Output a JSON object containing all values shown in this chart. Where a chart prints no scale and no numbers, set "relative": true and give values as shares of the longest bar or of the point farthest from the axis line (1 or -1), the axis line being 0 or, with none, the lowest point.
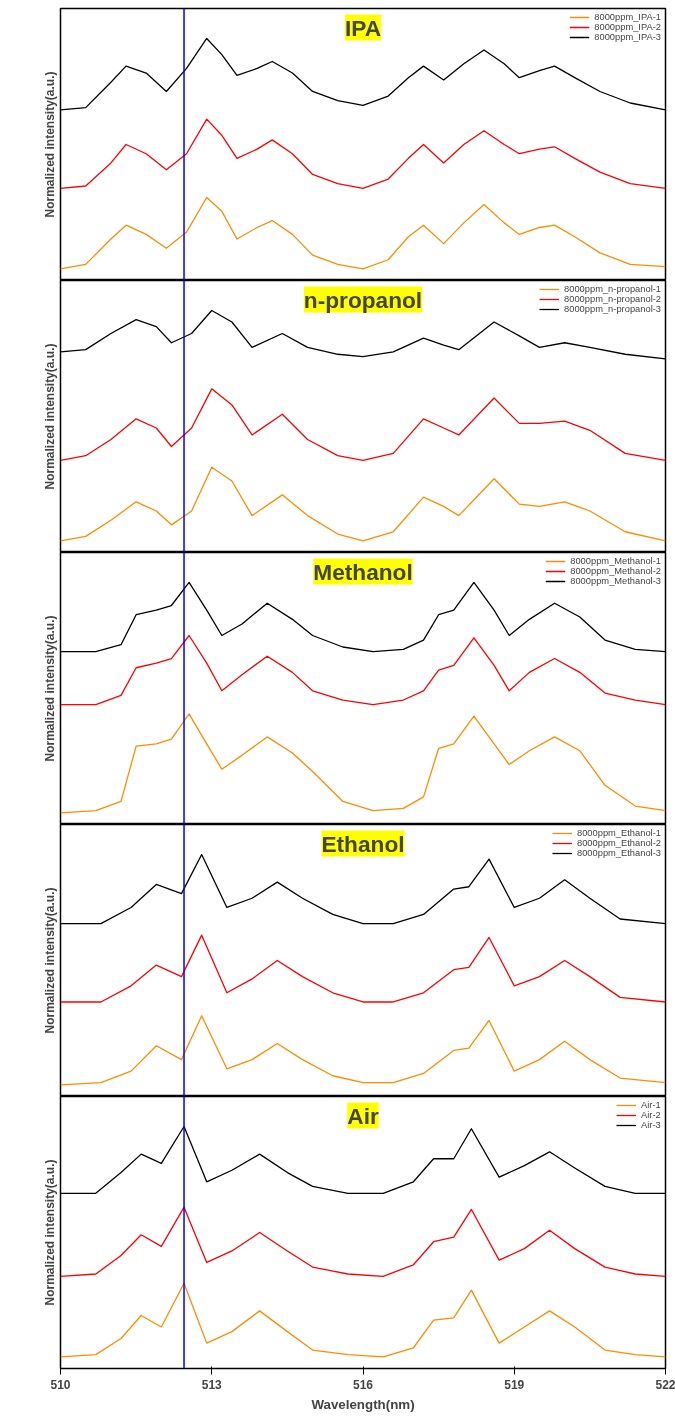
{
  "chart_data": [
    {
      "type": "line",
      "title": "IPA",
      "ylabel": "Normalized intensity(a.u.)",
      "relative": true,
      "xlim": [
        510,
        522
      ],
      "tick_labels": false,
      "legend": "top right",
      "ref_lines": [
        {
          "axis": "x",
          "value": 512.45,
          "color": "#0000ff"
        }
      ],
      "x": [
        510,
        510.5,
        511,
        511.3,
        511.7,
        512.1,
        512.5,
        512.9,
        513.2,
        513.5,
        513.9,
        514.2,
        514.6,
        515,
        515.5,
        516,
        516.5,
        516.9,
        517.2,
        517.6,
        518,
        518.4,
        518.8,
        519.1,
        519.5,
        519.8,
        520.2,
        520.7,
        521.3,
        522
      ],
      "series": [
        {
          "name": "8000ppm_IPA-1",
          "color": "#ff8c00",
          "values": [
            0.0,
            0.02,
            0.13,
            0.19,
            0.15,
            0.09,
            0.16,
            0.31,
            0.25,
            0.13,
            0.18,
            0.21,
            0.15,
            0.06,
            0.02,
            0.0,
            0.04,
            0.14,
            0.19,
            0.11,
            0.2,
            0.28,
            0.2,
            0.15,
            0.18,
            0.19,
            0.14,
            0.07,
            0.02,
            0.01
          ]
        },
        {
          "name": "8000ppm_IPA-2",
          "color": "#ff0000",
          "values": [
            0.35,
            0.36,
            0.46,
            0.54,
            0.5,
            0.43,
            0.5,
            0.65,
            0.58,
            0.48,
            0.52,
            0.56,
            0.5,
            0.41,
            0.37,
            0.35,
            0.39,
            0.48,
            0.54,
            0.46,
            0.54,
            0.6,
            0.54,
            0.5,
            0.52,
            0.53,
            0.48,
            0.42,
            0.37,
            0.35
          ]
        },
        {
          "name": "8000ppm_IPA-3",
          "color": "#000000",
          "values": [
            0.69,
            0.7,
            0.81,
            0.88,
            0.85,
            0.77,
            0.87,
            1.0,
            0.93,
            0.84,
            0.87,
            0.9,
            0.85,
            0.77,
            0.73,
            0.71,
            0.75,
            0.83,
            0.88,
            0.82,
            0.89,
            0.95,
            0.89,
            0.83,
            0.86,
            0.88,
            0.83,
            0.77,
            0.72,
            0.69
          ]
        }
      ]
    },
    {
      "type": "line",
      "title": "n-propanol",
      "ylabel": "Normalized intensity(a.u.)",
      "relative": true,
      "xlim": [
        510,
        522
      ],
      "tick_labels": false,
      "legend": "top right",
      "ref_lines": [
        {
          "axis": "x",
          "value": 512.45,
          "color": "#0000ff"
        }
      ],
      "x": [
        510,
        510.5,
        511,
        511.5,
        511.9,
        512.2,
        512.6,
        513.0,
        513.4,
        513.8,
        514.4,
        514.9,
        515.5,
        516,
        516.6,
        517.2,
        517.6,
        517.9,
        518.6,
        519.1,
        519.5,
        520.0,
        520.5,
        521.2,
        522
      ],
      "series": [
        {
          "name": "8000ppm_n-propanol-1",
          "color": "#ff8c00",
          "values": [
            0.0,
            0.02,
            0.09,
            0.17,
            0.13,
            0.07,
            0.13,
            0.32,
            0.26,
            0.11,
            0.2,
            0.11,
            0.03,
            0.0,
            0.04,
            0.19,
            0.15,
            0.11,
            0.27,
            0.16,
            0.15,
            0.17,
            0.13,
            0.04,
            0.0
          ]
        },
        {
          "name": "8000ppm_n-propanol-2",
          "color": "#ff0000",
          "values": [
            0.35,
            0.37,
            0.44,
            0.53,
            0.49,
            0.41,
            0.49,
            0.66,
            0.59,
            0.46,
            0.55,
            0.44,
            0.37,
            0.35,
            0.38,
            0.53,
            0.49,
            0.46,
            0.62,
            0.51,
            0.51,
            0.52,
            0.48,
            0.38,
            0.35
          ]
        },
        {
          "name": "8000ppm_n-propanol-3",
          "color": "#000000",
          "values": [
            0.82,
            0.83,
            0.9,
            0.96,
            0.93,
            0.86,
            0.9,
            1.0,
            0.95,
            0.84,
            0.9,
            0.84,
            0.81,
            0.8,
            0.82,
            0.88,
            0.85,
            0.83,
            0.95,
            0.89,
            0.84,
            0.86,
            0.84,
            0.81,
            0.79
          ]
        }
      ]
    },
    {
      "type": "line",
      "title": "Methanol",
      "ylabel": "Normalized intensity(a.u.)",
      "relative": true,
      "xlim": [
        510,
        522
      ],
      "tick_labels": false,
      "legend": "top right",
      "ref_lines": [
        {
          "axis": "x",
          "value": 512.45,
          "color": "#0000ff"
        }
      ],
      "x": [
        510,
        510.7,
        511.2,
        511.5,
        511.9,
        512.2,
        512.55,
        512.9,
        513.2,
        513.6,
        514.1,
        514.6,
        515,
        515.6,
        516.2,
        516.8,
        517.2,
        517.5,
        517.8,
        518.2,
        518.6,
        518.9,
        519.3,
        519.8,
        520.3,
        520.8,
        521.4,
        522
      ],
      "series": [
        {
          "name": "8000ppm_Methanol-1",
          "color": "#ff8c00",
          "values": [
            0.0,
            0.01,
            0.05,
            0.29,
            0.3,
            0.32,
            0.43,
            0.3,
            0.19,
            0.25,
            0.33,
            0.26,
            0.18,
            0.05,
            0.01,
            0.02,
            0.07,
            0.28,
            0.3,
            0.42,
            0.3,
            0.21,
            0.27,
            0.33,
            0.27,
            0.12,
            0.03,
            0.01
          ]
        },
        {
          "name": "8000ppm_Methanol-2",
          "color": "#ff0000",
          "values": [
            0.47,
            0.47,
            0.51,
            0.63,
            0.65,
            0.67,
            0.77,
            0.65,
            0.53,
            0.6,
            0.68,
            0.61,
            0.53,
            0.49,
            0.47,
            0.49,
            0.53,
            0.62,
            0.64,
            0.76,
            0.64,
            0.53,
            0.61,
            0.67,
            0.61,
            0.52,
            0.49,
            0.47
          ]
        },
        {
          "name": "8000ppm_Methanol-3",
          "color": "#000000",
          "values": [
            0.7,
            0.7,
            0.73,
            0.86,
            0.88,
            0.9,
            1.0,
            0.88,
            0.77,
            0.82,
            0.91,
            0.84,
            0.77,
            0.72,
            0.7,
            0.71,
            0.75,
            0.86,
            0.88,
            1.0,
            0.88,
            0.77,
            0.84,
            0.91,
            0.85,
            0.75,
            0.71,
            0.7
          ]
        }
      ]
    },
    {
      "type": "line",
      "title": "Ethanol",
      "ylabel": "Normalized intensity(a.u.)",
      "relative": true,
      "xlim": [
        510,
        522
      ],
      "tick_labels": false,
      "legend": "top right",
      "ref_lines": [
        {
          "axis": "x",
          "value": 512.45,
          "color": "#0000ff"
        }
      ],
      "x": [
        510,
        510.8,
        511.4,
        511.9,
        512.4,
        512.8,
        513.3,
        513.8,
        514.3,
        514.8,
        515.4,
        516,
        516.6,
        517.2,
        517.8,
        518.1,
        518.5,
        519.0,
        519.5,
        520.0,
        520.5,
        521.1,
        522
      ],
      "series": [
        {
          "name": "8000ppm_Ethanol-1",
          "color": "#ff8c00",
          "values": [
            0.0,
            0.01,
            0.06,
            0.17,
            0.11,
            0.3,
            0.07,
            0.11,
            0.18,
            0.11,
            0.04,
            0.01,
            0.01,
            0.05,
            0.15,
            0.16,
            0.28,
            0.06,
            0.11,
            0.19,
            0.11,
            0.03,
            0.01
          ]
        },
        {
          "name": "8000ppm_Ethanol-2",
          "color": "#ff0000",
          "values": [
            0.36,
            0.36,
            0.43,
            0.52,
            0.47,
            0.65,
            0.4,
            0.46,
            0.54,
            0.47,
            0.4,
            0.36,
            0.36,
            0.4,
            0.5,
            0.51,
            0.64,
            0.43,
            0.47,
            0.54,
            0.47,
            0.38,
            0.36
          ]
        },
        {
          "name": "8000ppm_Ethanol-3",
          "color": "#000000",
          "values": [
            0.7,
            0.7,
            0.77,
            0.87,
            0.83,
            1.0,
            0.77,
            0.81,
            0.88,
            0.81,
            0.74,
            0.7,
            0.7,
            0.74,
            0.85,
            0.86,
            0.98,
            0.77,
            0.81,
            0.89,
            0.81,
            0.72,
            0.7
          ]
        }
      ]
    },
    {
      "type": "line",
      "title": "Air",
      "ylabel": "Normalized intensity(a.u.)",
      "xlabel": "Wavelength(nm)",
      "relative": true,
      "xlim": [
        510,
        522
      ],
      "xticks": [
        510,
        513,
        516,
        519,
        522
      ],
      "tick_labels": "x",
      "legend": "top right",
      "ref_lines": [
        {
          "axis": "x",
          "value": 512.45,
          "color": "#0000ff"
        }
      ],
      "x": [
        510,
        510.7,
        511.2,
        511.6,
        512.0,
        512.45,
        512.9,
        513.4,
        513.95,
        514.5,
        515,
        515.7,
        516.4,
        517,
        517.4,
        517.8,
        518.15,
        518.7,
        519.2,
        519.7,
        520.2,
        520.8,
        521.4,
        522
      ],
      "series": [
        {
          "name": "Air-1",
          "color": "#ff8c00",
          "values": [
            0.0,
            0.01,
            0.08,
            0.18,
            0.13,
            0.32,
            0.06,
            0.11,
            0.2,
            0.11,
            0.03,
            0.01,
            0.0,
            0.04,
            0.16,
            0.17,
            0.29,
            0.06,
            0.13,
            0.2,
            0.13,
            0.03,
            0.01,
            0.0
          ]
        },
        {
          "name": "Air-2",
          "color": "#ff0000",
          "values": [
            0.35,
            0.36,
            0.44,
            0.53,
            0.48,
            0.65,
            0.41,
            0.46,
            0.54,
            0.46,
            0.39,
            0.36,
            0.35,
            0.4,
            0.5,
            0.52,
            0.64,
            0.42,
            0.47,
            0.55,
            0.47,
            0.39,
            0.36,
            0.35
          ]
        },
        {
          "name": "Air-3",
          "color": "#000000",
          "values": [
            0.71,
            0.71,
            0.8,
            0.88,
            0.84,
            1.0,
            0.76,
            0.81,
            0.88,
            0.8,
            0.74,
            0.71,
            0.71,
            0.76,
            0.86,
            0.86,
            0.99,
            0.78,
            0.83,
            0.89,
            0.82,
            0.74,
            0.71,
            0.71
          ]
        }
      ]
    }
  ]
}
